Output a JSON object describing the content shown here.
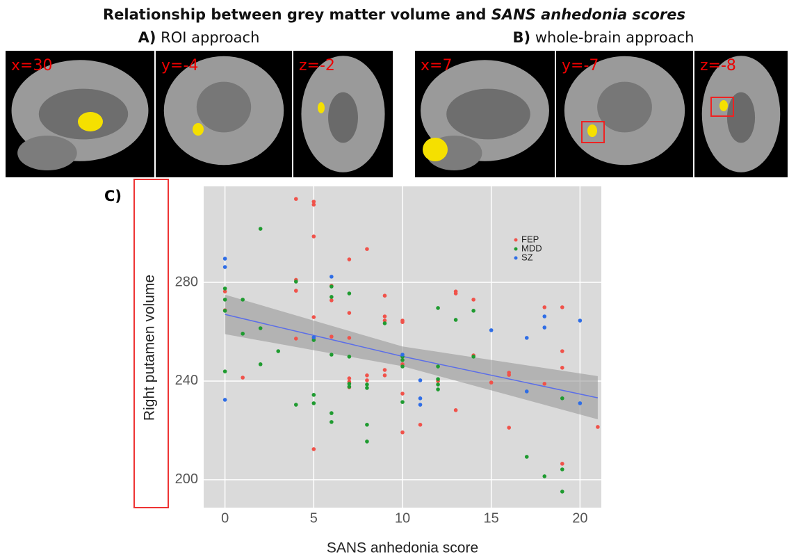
{
  "header": {
    "title": [
      "Relationship between grey matter volume and",
      "SANS anhedonia scores"
    ],
    "panel_a": {
      "letter": "A)",
      "text": "ROI approach"
    },
    "panel_b": {
      "letter": "B)",
      "text": "whole-brain approach"
    }
  },
  "images": {
    "a": [
      "x=30",
      "y=-4",
      "z=-2"
    ],
    "b": [
      "x=7",
      "y=-7",
      "z=-8"
    ]
  },
  "chart_data": {
    "type": "scatter",
    "panel_label": "C)",
    "xlabel": "SANS anhedonia score",
    "ylabel": "Right putamen volume",
    "xlim": [
      -1.2,
      21.2
    ],
    "ylim": [
      188.7,
      318.9
    ],
    "xticks": [
      0,
      5,
      10,
      15,
      20
    ],
    "yticks": [
      200,
      240,
      280
    ],
    "grid": true,
    "legend": "upper right",
    "series": [
      {
        "name": "FEP",
        "color": "#f0524a",
        "x": [
          0,
          0,
          1,
          4,
          4,
          4,
          4,
          5,
          5,
          5,
          5,
          5,
          5,
          6,
          6,
          6,
          7,
          7,
          7,
          7,
          7,
          7,
          8,
          8,
          8,
          9,
          9,
          9,
          9,
          9,
          10,
          10,
          10,
          10,
          10,
          11,
          12,
          13,
          13,
          13,
          14,
          14,
          15,
          16,
          16,
          16,
          18,
          18,
          19,
          19,
          19,
          19,
          21
        ],
        "values": [
          268.7,
          276.3,
          241.4,
          313.8,
          276.6,
          281,
          257.2,
          312.7,
          311.5,
          298.6,
          265.9,
          257.2,
          212.4,
          278.6,
          272.7,
          258,
          289.3,
          267.6,
          257.5,
          241.1,
          239.7,
          237.5,
          293.5,
          242.3,
          240.3,
          274.6,
          266.2,
          264.5,
          244.5,
          242.3,
          264.5,
          263.9,
          246.8,
          234.9,
          219.2,
          222.3,
          240,
          276.3,
          275.5,
          228.2,
          273,
          250.4,
          239.4,
          243.4,
          242.5,
          221.1,
          269.9,
          238.9,
          269.9,
          252.1,
          245.4,
          206.5,
          221.4
        ]
      },
      {
        "name": "MDD",
        "color": "#1f9b30",
        "x": [
          0,
          0,
          0,
          0,
          1,
          1,
          2,
          2,
          2,
          3,
          4,
          4,
          5,
          5,
          5,
          6,
          6,
          6,
          6,
          6,
          7,
          7,
          7,
          7,
          8,
          8,
          8,
          8,
          9,
          10,
          10,
          10,
          10,
          12,
          12,
          12,
          12,
          12,
          13,
          14,
          14,
          17,
          18,
          19,
          19,
          19
        ],
        "values": [
          277.5,
          273,
          243.9,
          268.5,
          273,
          259.2,
          301.7,
          261.4,
          246.8,
          252.1,
          280.3,
          230.4,
          256.6,
          234.4,
          231,
          278.3,
          274.1,
          250.7,
          227,
          223.4,
          275.5,
          249.9,
          238.9,
          237.7,
          238.6,
          237.2,
          222.3,
          215.5,
          263.4,
          249.9,
          248.5,
          245.9,
          231.5,
          269.6,
          245.9,
          240.8,
          238.6,
          236.6,
          264.8,
          268.5,
          249.9,
          209.3,
          201.4,
          233,
          204.2,
          195.2
        ]
      },
      {
        "name": "SZ",
        "color": "#2e6de6",
        "x": [
          0,
          0,
          0,
          5,
          6,
          10,
          11,
          11,
          11,
          15,
          17,
          17,
          18,
          18,
          20,
          20
        ],
        "values": [
          289.6,
          286.2,
          232.4,
          257.7,
          282.3,
          250.7,
          240.3,
          233,
          230.4,
          260.6,
          257.5,
          235.8,
          266.2,
          261.7,
          264.5,
          231
        ]
      }
    ],
    "fit": {
      "color": "#5b6ee8",
      "x": [
        0,
        10,
        21
      ],
      "values": [
        267,
        250,
        233.2
      ],
      "upper": [
        275,
        254,
        242
      ],
      "lower": [
        259,
        246,
        224.5
      ]
    }
  }
}
